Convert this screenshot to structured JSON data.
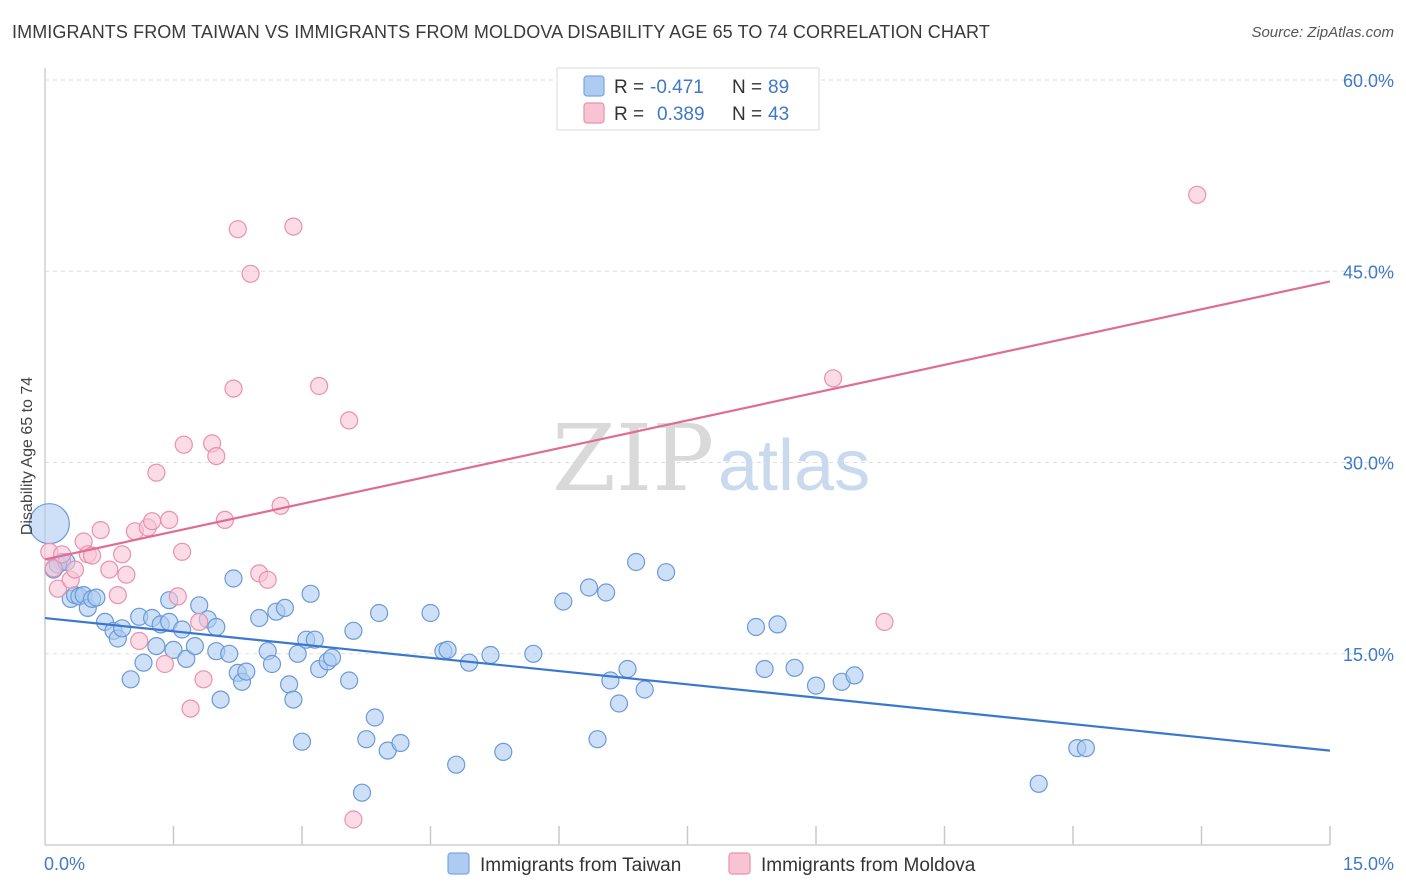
{
  "title": "IMMIGRANTS FROM TAIWAN VS IMMIGRANTS FROM MOLDOVA DISABILITY AGE 65 TO 74 CORRELATION CHART",
  "source": "Source: ZipAtlas.com",
  "watermark": {
    "zip": "ZIP",
    "atlas": "atlas"
  },
  "legend": {
    "rows": [
      {
        "r_label": "R =",
        "r_value": "-0.471",
        "n_label": "N =",
        "n_value": "89",
        "color": "#aecbf2",
        "stroke": "#7aa6dd"
      },
      {
        "r_label": "R =",
        "r_value": "0.389",
        "n_label": "N =",
        "n_value": "43",
        "color": "#f8c3d3",
        "stroke": "#e892ae"
      }
    ]
  },
  "chart_data": {
    "type": "scatter",
    "title": "IMMIGRANTS FROM TAIWAN VS IMMIGRANTS FROM MOLDOVA DISABILITY AGE 65 TO 74 CORRELATION CHART",
    "xlabel": "",
    "ylabel": "Disability Age 65 to 74",
    "xlim": [
      0,
      15
    ],
    "ylim": [
      0,
      61
    ],
    "x_tick_labels": [
      "0.0%",
      "15.0%"
    ],
    "y_ticks": [
      15,
      30,
      45,
      60
    ],
    "y_tick_labels": [
      "15.0%",
      "30.0%",
      "45.0%",
      "60.0%"
    ],
    "grid": true,
    "legend_placement": "bottom",
    "series": [
      {
        "name": "Immigrants from Taiwan",
        "color": "#aecbf2",
        "stroke": "#6a9ad6",
        "line_color": "#3a78d0",
        "trend": {
          "x": [
            0,
            15
          ],
          "y": [
            17.8,
            7.4
          ]
        },
        "points": [
          [
            0.05,
            25.2
          ],
          [
            0.1,
            21.6
          ],
          [
            0.2,
            22.2
          ],
          [
            0.3,
            19.3
          ],
          [
            0.35,
            19.6
          ],
          [
            0.4,
            19.5
          ],
          [
            0.45,
            19.6
          ],
          [
            0.5,
            18.6
          ],
          [
            0.55,
            19.3
          ],
          [
            0.7,
            17.5
          ],
          [
            0.8,
            16.8
          ],
          [
            0.85,
            16.2
          ],
          [
            0.9,
            17.0
          ],
          [
            1.0,
            13.0
          ],
          [
            1.1,
            17.9
          ],
          [
            1.15,
            14.3
          ],
          [
            1.25,
            17.8
          ],
          [
            1.3,
            15.6
          ],
          [
            1.35,
            17.3
          ],
          [
            1.45,
            19.2
          ],
          [
            1.45,
            17.5
          ],
          [
            1.5,
            15.3
          ],
          [
            1.6,
            16.9
          ],
          [
            1.65,
            14.6
          ],
          [
            1.75,
            15.6
          ],
          [
            1.8,
            18.8
          ],
          [
            1.9,
            17.7
          ],
          [
            2.0,
            15.2
          ],
          [
            2.0,
            17.1
          ],
          [
            2.05,
            11.4
          ],
          [
            2.15,
            15.0
          ],
          [
            2.2,
            20.9
          ],
          [
            2.25,
            13.5
          ],
          [
            2.3,
            12.8
          ],
          [
            2.35,
            13.6
          ],
          [
            2.5,
            17.8
          ],
          [
            2.6,
            15.2
          ],
          [
            2.65,
            14.2
          ],
          [
            2.7,
            18.3
          ],
          [
            2.8,
            18.6
          ],
          [
            2.85,
            12.6
          ],
          [
            2.9,
            11.4
          ],
          [
            2.95,
            15.0
          ],
          [
            3.0,
            8.1
          ],
          [
            3.05,
            16.1
          ],
          [
            3.1,
            19.7
          ],
          [
            3.15,
            16.1
          ],
          [
            3.2,
            13.8
          ],
          [
            3.3,
            14.4
          ],
          [
            3.35,
            14.7
          ],
          [
            3.55,
            12.9
          ],
          [
            3.6,
            16.8
          ],
          [
            3.7,
            4.1
          ],
          [
            3.75,
            8.3
          ],
          [
            3.85,
            10.0
          ],
          [
            3.9,
            18.2
          ],
          [
            4.0,
            7.4
          ],
          [
            4.15,
            8.0
          ],
          [
            4.5,
            18.2
          ],
          [
            4.65,
            15.2
          ],
          [
            4.7,
            15.3
          ],
          [
            4.8,
            6.3
          ],
          [
            4.95,
            14.3
          ],
          [
            5.2,
            14.9
          ],
          [
            5.35,
            7.3
          ],
          [
            5.7,
            15.0
          ],
          [
            6.05,
            19.1
          ],
          [
            6.35,
            20.2
          ],
          [
            6.45,
            8.3
          ],
          [
            6.55,
            19.8
          ],
          [
            6.6,
            12.9
          ],
          [
            6.7,
            11.1
          ],
          [
            6.8,
            13.8
          ],
          [
            6.9,
            22.2
          ],
          [
            7.0,
            12.2
          ],
          [
            7.25,
            21.4
          ],
          [
            8.3,
            17.1
          ],
          [
            8.4,
            13.8
          ],
          [
            8.55,
            17.3
          ],
          [
            8.75,
            13.9
          ],
          [
            9.0,
            12.5
          ],
          [
            9.3,
            12.8
          ],
          [
            9.45,
            13.3
          ],
          [
            11.6,
            4.8
          ],
          [
            12.05,
            7.6
          ],
          [
            12.15,
            7.6
          ],
          [
            0.15,
            22.0
          ],
          [
            0.25,
            22.2
          ],
          [
            0.6,
            19.4
          ]
        ]
      },
      {
        "name": "Immigrants from Moldova",
        "color": "#f8c3d3",
        "stroke": "#e892ae",
        "line_color": "#e06c95",
        "trend": {
          "x": [
            0,
            15
          ],
          "y": [
            22.4,
            44.2
          ]
        },
        "points": [
          [
            0.05,
            23.0
          ],
          [
            0.1,
            21.7
          ],
          [
            0.15,
            20.1
          ],
          [
            0.2,
            22.8
          ],
          [
            0.3,
            20.8
          ],
          [
            0.35,
            21.6
          ],
          [
            0.45,
            23.8
          ],
          [
            0.5,
            22.8
          ],
          [
            0.55,
            22.7
          ],
          [
            0.65,
            24.7
          ],
          [
            0.75,
            21.6
          ],
          [
            0.85,
            19.6
          ],
          [
            0.9,
            22.8
          ],
          [
            0.95,
            21.2
          ],
          [
            1.05,
            24.6
          ],
          [
            1.1,
            16.0
          ],
          [
            1.2,
            24.9
          ],
          [
            1.25,
            25.4
          ],
          [
            1.3,
            29.2
          ],
          [
            1.4,
            14.2
          ],
          [
            1.45,
            25.5
          ],
          [
            1.55,
            19.5
          ],
          [
            1.6,
            23.0
          ],
          [
            1.62,
            31.4
          ],
          [
            1.7,
            10.7
          ],
          [
            1.8,
            17.5
          ],
          [
            1.85,
            13.0
          ],
          [
            1.95,
            31.5
          ],
          [
            2.0,
            30.5
          ],
          [
            2.1,
            25.5
          ],
          [
            2.2,
            35.8
          ],
          [
            2.25,
            48.3
          ],
          [
            2.4,
            44.8
          ],
          [
            2.5,
            21.3
          ],
          [
            2.6,
            20.8
          ],
          [
            2.75,
            26.6
          ],
          [
            2.9,
            48.5
          ],
          [
            3.2,
            36.0
          ],
          [
            3.55,
            33.3
          ],
          [
            3.6,
            2.0
          ],
          [
            9.2,
            36.6
          ],
          [
            9.8,
            17.5
          ],
          [
            13.45,
            51.0
          ]
        ]
      }
    ]
  }
}
